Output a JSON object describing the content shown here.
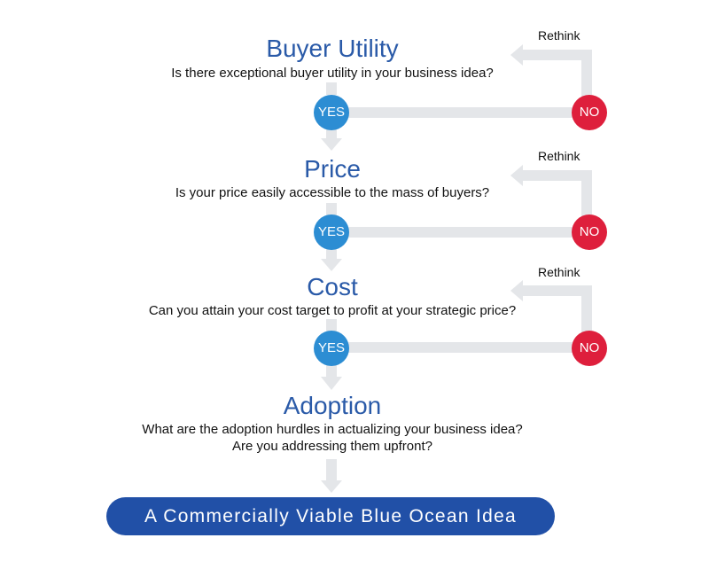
{
  "colors": {
    "title": "#2a5aa8",
    "yes_badge": "#2c8dd3",
    "no_badge": "#de1f3c",
    "connector": "#e4e6e9",
    "banner": "#2150a7"
  },
  "steps": [
    {
      "title": "Buyer Utility",
      "question": "Is there exceptional buyer utility in your business idea?",
      "yes_label": "YES",
      "no_label": "NO",
      "rethink_label": "Rethink"
    },
    {
      "title": "Price",
      "question": "Is your price easily accessible to the mass of buyers?",
      "yes_label": "YES",
      "no_label": "NO",
      "rethink_label": "Rethink"
    },
    {
      "title": "Cost",
      "question": "Can you attain your cost target to profit at your strategic price?",
      "yes_label": "YES",
      "no_label": "NO",
      "rethink_label": "Rethink"
    }
  ],
  "adoption": {
    "title": "Adoption",
    "question_line1": "What are the adoption hurdles in actualizing your business idea?",
    "question_line2": "Are you addressing them upfront?"
  },
  "result": {
    "label": "A Commercially Viable Blue Ocean Idea"
  }
}
